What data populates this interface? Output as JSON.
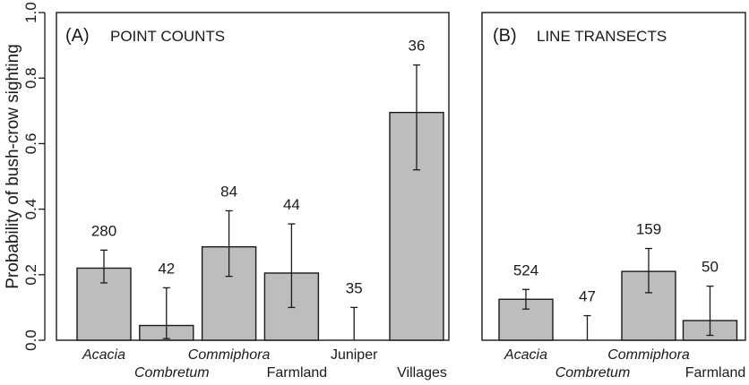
{
  "chart_data": [
    {
      "type": "bar",
      "panel_label": "(A)",
      "title": "POINT COUNTS",
      "ylabel": "Probability of bush-crow sighting",
      "ylim": [
        0,
        1.0
      ],
      "yticks": [
        "0.0",
        "0.2",
        "0.4",
        "0.6",
        "0.8",
        "1.0"
      ],
      "categories": [
        "Acacia",
        "Combretum",
        "Commiphora",
        "Farmland",
        "Juniper",
        "Villages"
      ],
      "italic": [
        true,
        true,
        true,
        false,
        false,
        false
      ],
      "values": [
        0.22,
        0.045,
        0.285,
        0.205,
        0.0,
        0.695
      ],
      "err_low": [
        0.175,
        0.005,
        0.195,
        0.1,
        0.0,
        0.52
      ],
      "err_high": [
        0.275,
        0.16,
        0.395,
        0.355,
        0.1,
        0.84
      ],
      "counts": [
        "280",
        "42",
        "84",
        "44",
        "35",
        "36"
      ]
    },
    {
      "type": "bar",
      "panel_label": "(B)",
      "title": "LINE TRANSECTS",
      "ylim": [
        0,
        1.0
      ],
      "categories": [
        "Acacia",
        "Combretum",
        "Commiphora",
        "Farmland"
      ],
      "italic": [
        true,
        true,
        true,
        false
      ],
      "values": [
        0.125,
        0.0,
        0.21,
        0.06
      ],
      "err_low": [
        0.095,
        0.0,
        0.145,
        0.015
      ],
      "err_high": [
        0.155,
        0.075,
        0.28,
        0.165
      ],
      "counts": [
        "524",
        "47",
        "159",
        "50"
      ]
    }
  ]
}
